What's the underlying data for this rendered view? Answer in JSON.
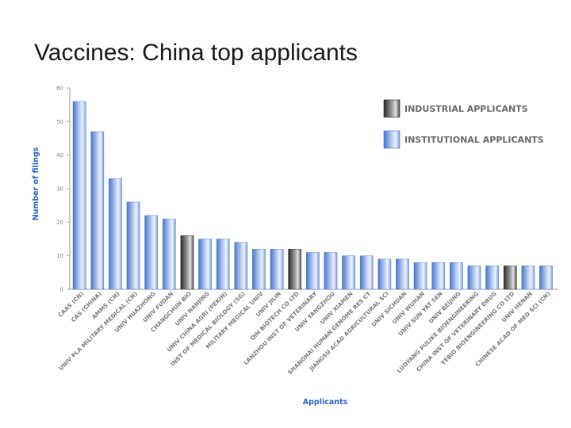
{
  "slide": {
    "title": "Vaccines: China top applicants"
  },
  "chart_data": {
    "type": "bar",
    "xlabel": "Applicants",
    "ylabel": "Number of filings",
    "ylim": [
      0,
      60
    ],
    "yticks": [
      0,
      10,
      20,
      30,
      40,
      50,
      60
    ],
    "grid": false,
    "legend_position": "top-right",
    "legend": [
      {
        "label": "INDUSTRIAL APPLICANTS",
        "kind": "industrial"
      },
      {
        "label": "INSTITUTIONAL APPLICANTS",
        "kind": "institutional"
      }
    ],
    "colors": {
      "institutional": "#5f86d8",
      "industrial": "#3c3c3c",
      "axis": "#999999"
    },
    "categories": [
      "CAAS (CN)",
      "CAS (CHINA)",
      "AMMS (CN)",
      "UNIV PLA MILITARY MEDICAL (CN)",
      "UNIV HUAZHONG",
      "UNIV FUDAN",
      "CHANGCHUN BIO",
      "UNIV NANJING",
      "UNIV CHINA AGRI (PEKIN)",
      "INST OF MEDICAL BIOLOGY (SG)",
      "MILITARY MEDICAL UNIV",
      "UNIV JILIN",
      "QIH BIOTECH CO LTD",
      "LANZHOU INST OF VETERINARY",
      "UNIV YANGZHOU",
      "UNIV XIAMEN",
      "SHANGHAI HUMAN GENOME RES CT",
      "JIANGSU ACAD AGRICULTURAL SCI",
      "UNIV SICHUAN",
      "UNIV WUHAN",
      "UNIV SUN YAT SEN",
      "UNIV BEIJING",
      "LUOYANG PULIKE BIOENGINEERING",
      "CHINA INST OF VETERINARY DRUG",
      "YEBIO BIOENGINEERING CO LTD",
      "UNIV HENAN",
      "CHINESE ACAD OF MED SCI (CN)"
    ],
    "values": [
      56,
      47,
      33,
      26,
      22,
      21,
      16,
      15,
      15,
      14,
      12,
      12,
      12,
      11,
      11,
      10,
      10,
      9,
      9,
      8,
      8,
      8,
      7,
      7,
      7,
      7,
      7
    ],
    "types": [
      "institutional",
      "institutional",
      "institutional",
      "institutional",
      "institutional",
      "institutional",
      "industrial",
      "institutional",
      "institutional",
      "institutional",
      "institutional",
      "institutional",
      "industrial",
      "institutional",
      "institutional",
      "institutional",
      "institutional",
      "institutional",
      "institutional",
      "institutional",
      "institutional",
      "institutional",
      "institutional",
      "institutional",
      "industrial",
      "institutional",
      "institutional"
    ]
  }
}
